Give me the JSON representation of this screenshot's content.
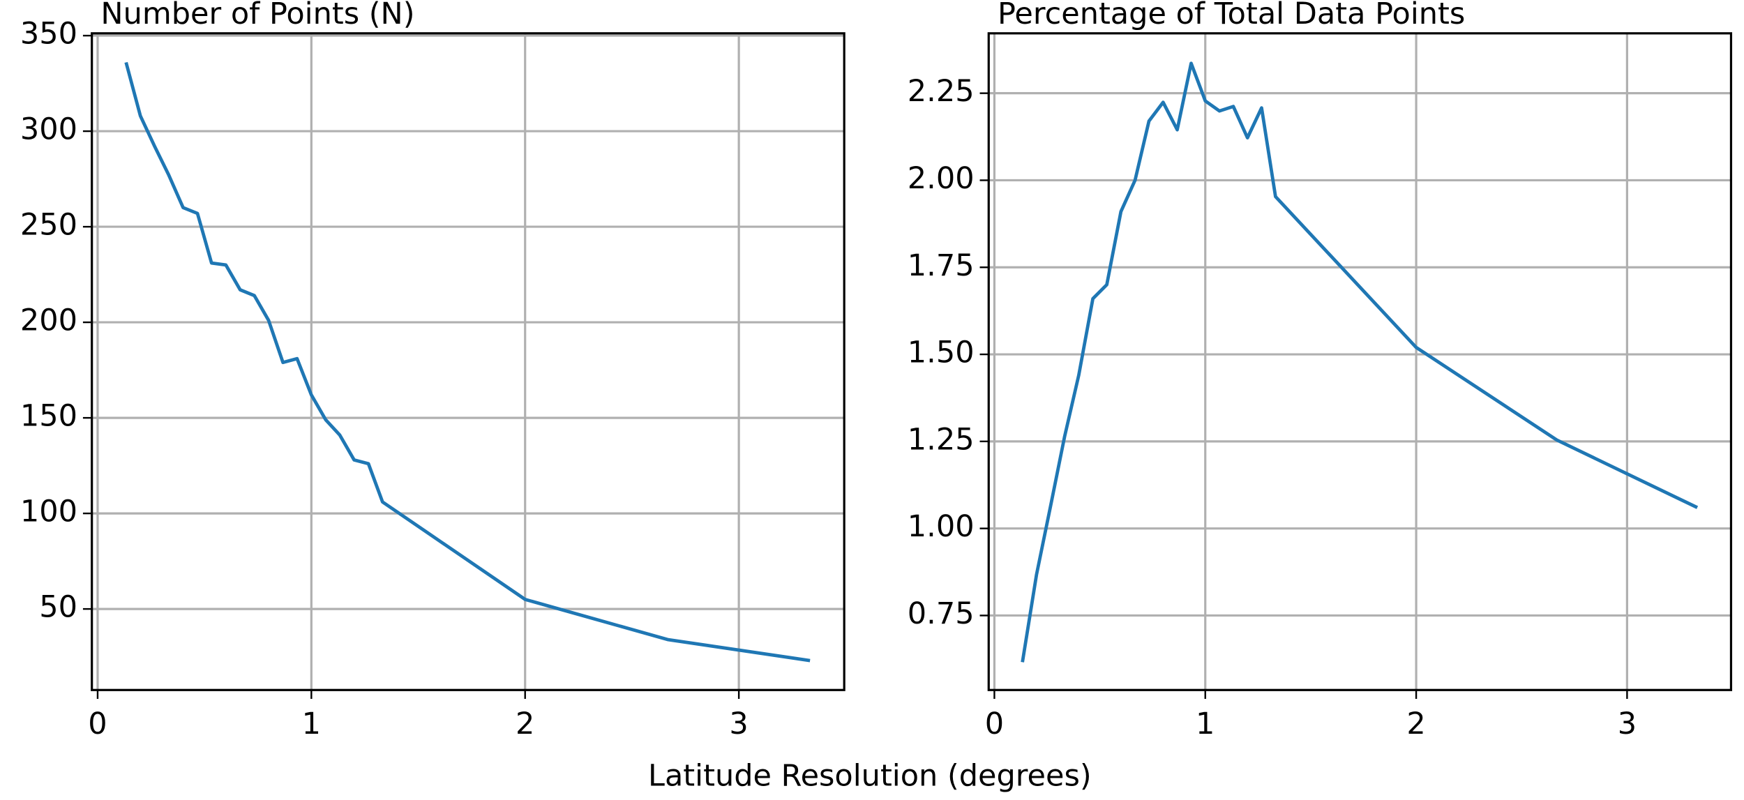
{
  "xlabel": "Latitude Resolution (degrees)",
  "chart_data": [
    {
      "type": "line",
      "title": "Number of Points (N)",
      "x": [
        0.133,
        0.2,
        0.267,
        0.333,
        0.4,
        0.467,
        0.533,
        0.6,
        0.667,
        0.733,
        0.8,
        0.867,
        0.933,
        1.0,
        1.067,
        1.133,
        1.2,
        1.267,
        1.333,
        2.0,
        2.667,
        3.333
      ],
      "series": [
        {
          "color": "#1f77b4",
          "values": [
            336,
            308,
            292,
            277,
            260,
            257,
            231,
            230,
            217,
            214,
            201,
            179,
            181,
            162,
            149,
            141,
            128,
            126,
            106,
            55,
            34,
            23
          ]
        }
      ],
      "xlim": [
        -0.027,
        3.493
      ],
      "xticks": [
        0,
        1,
        2,
        3
      ],
      "ylim": [
        7.6,
        351.2
      ],
      "yticks": [
        50,
        100,
        150,
        200,
        250,
        300,
        350
      ],
      "grid": true
    },
    {
      "type": "line",
      "title": "Percentage of Total Data Points",
      "x": [
        0.133,
        0.2,
        0.267,
        0.333,
        0.4,
        0.467,
        0.533,
        0.6,
        0.667,
        0.733,
        0.8,
        0.867,
        0.933,
        1.0,
        1.067,
        1.133,
        1.2,
        1.267,
        1.333,
        2.0,
        2.667,
        3.333
      ],
      "series": [
        {
          "color": "#1f77b4",
          "values": [
            0.616,
            0.868,
            1.066,
            1.264,
            1.44,
            1.66,
            1.7,
            1.91,
            2.0,
            2.17,
            2.224,
            2.145,
            2.336,
            2.228,
            2.199,
            2.212,
            2.122,
            2.208,
            1.953,
            1.52,
            1.254,
            1.06
          ]
        }
      ],
      "xlim": [
        -0.027,
        3.493
      ],
      "xticks": [
        0,
        1,
        2,
        3
      ],
      "ylim": [
        0.536,
        2.422
      ],
      "yticks": [
        0.75,
        {
          "value": 1.0,
          "label": "1.00"
        },
        1.25,
        {
          "value": 1.5,
          "label": "1.50"
        },
        1.75,
        {
          "value": 2.0,
          "label": "2.00"
        },
        2.25
      ],
      "grid": true
    }
  ]
}
